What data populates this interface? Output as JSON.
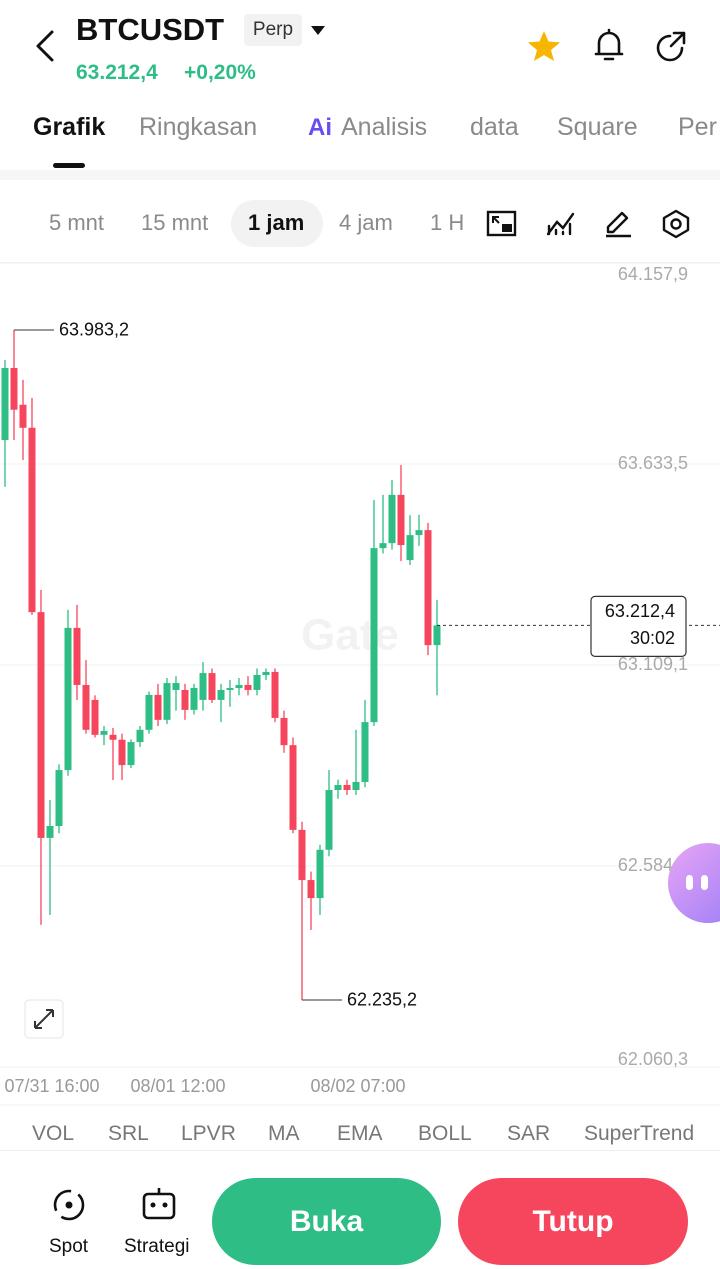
{
  "header": {
    "symbol": "BTCUSDT",
    "badge": "Perp",
    "price": "63.212,4",
    "change": "+0,20%"
  },
  "tabs": [
    "Grafik",
    "Ringkasan",
    "Analisis",
    "data",
    "Square",
    "Per"
  ],
  "ai_icon": "Ai",
  "timeframes": [
    "5 mnt",
    "15 mnt",
    "1 jam",
    "4 jam",
    "1 H"
  ],
  "chart_data": {
    "type": "candlestick",
    "watermark": "Gate",
    "categories": [
      null,
      null,
      null,
      null,
      null,
      "07/31 16:00",
      null,
      null,
      null,
      null,
      null,
      null,
      null,
      null,
      null,
      null,
      null,
      null,
      null,
      "08/01 12:00",
      null,
      null,
      null,
      null,
      null,
      null,
      null,
      null,
      null,
      null,
      null,
      null,
      null,
      null,
      null,
      null,
      null,
      null,
      null,
      "08/02 07:00",
      null,
      null,
      null,
      null,
      null,
      null,
      null,
      null,
      null
    ],
    "open": [
      63696,
      63884,
      63788,
      63728,
      63247,
      62658,
      62689,
      62835,
      63206,
      63057,
      63018,
      62927,
      62927,
      62914,
      62848,
      62908,
      62940,
      63031,
      62966,
      63044,
      63044,
      62992,
      63018,
      63088,
      63018,
      63044,
      63049,
      63057,
      63044,
      63083,
      63091,
      62971,
      62900,
      62679,
      62548,
      62501,
      62627,
      62783,
      62796,
      62783,
      62804,
      62960,
      63414,
      63427,
      63553,
      63383,
      63448,
      63461,
      63161
    ],
    "high": [
      63905,
      63983.2,
      63853,
      63806,
      63305,
      62757,
      62850,
      63253,
      63266,
      63122,
      63030,
      62950,
      62945,
      62930,
      62915,
      62950,
      63040,
      63060,
      63075,
      63080,
      63060,
      63060,
      63117,
      63100,
      63060,
      63070,
      63075,
      63080,
      63100,
      63100,
      63100,
      62990,
      62920,
      62700,
      62570,
      62640,
      62835,
      62810,
      62810,
      62940,
      63018,
      63540,
      63553,
      63592,
      63631,
      63500,
      63501,
      63480,
      63279
    ],
    "low": [
      63574,
      63696,
      63644,
      63240,
      62431,
      62457,
      62670,
      62820,
      63018,
      62930,
      62920,
      62900,
      62809,
      62809,
      62840,
      62895,
      62930,
      62950,
      62955,
      62990,
      62966,
      62980,
      62990,
      63010,
      62960,
      63000,
      63030,
      63030,
      63030,
      63070,
      62960,
      62880,
      62670,
      62235.2,
      62418,
      62457,
      62610,
      62760,
      62770,
      62770,
      62790,
      62950,
      63400,
      63410,
      63380,
      63370,
      63420,
      63135,
      63030
    ],
    "close": [
      63884,
      63775,
      63728,
      63247,
      62658,
      62689,
      62835,
      63206,
      63057,
      62940,
      62927,
      62937,
      62914,
      62848,
      62908,
      62940,
      63031,
      62966,
      63062,
      63062,
      62992,
      63049,
      63088,
      63018,
      63044,
      63049,
      63057,
      63044,
      63083,
      63091,
      62971,
      62900,
      62679,
      62548,
      62501,
      62627,
      62783,
      62796,
      62783,
      62804,
      62960,
      63414,
      63427,
      63553,
      63422,
      63448,
      63461,
      63161,
      63212.4
    ],
    "up_color": "#2ebd85",
    "down_color": "#f6465d",
    "ylim": [
      62060.3,
      64157.9
    ],
    "yticks": [
      {
        "value": 64157.9,
        "label": "64.157,9"
      },
      {
        "value": 63633.5,
        "label": "63.633,5"
      },
      {
        "value": 63109.1,
        "label": "63.109,1"
      },
      {
        "value": 62584.7,
        "label": "62.584,7"
      },
      {
        "value": 62060.3,
        "label": "62.060,3"
      }
    ],
    "grid": true,
    "high_marker": {
      "value": 63983.2,
      "label": "63.983,2"
    },
    "low_marker": {
      "value": 62235.2,
      "label": "62.235,2"
    },
    "last_price": {
      "value": 63212.4,
      "label": "63.212,4"
    },
    "countdown": "30:02"
  },
  "indicators": [
    "VOL",
    "SRL",
    "LPVR",
    "MA",
    "EMA",
    "BOLL",
    "SAR",
    "SuperTrend"
  ],
  "bottom": {
    "spot": "Spot",
    "strategy": "Strategi",
    "open": "Buka",
    "close": "Tutup"
  }
}
